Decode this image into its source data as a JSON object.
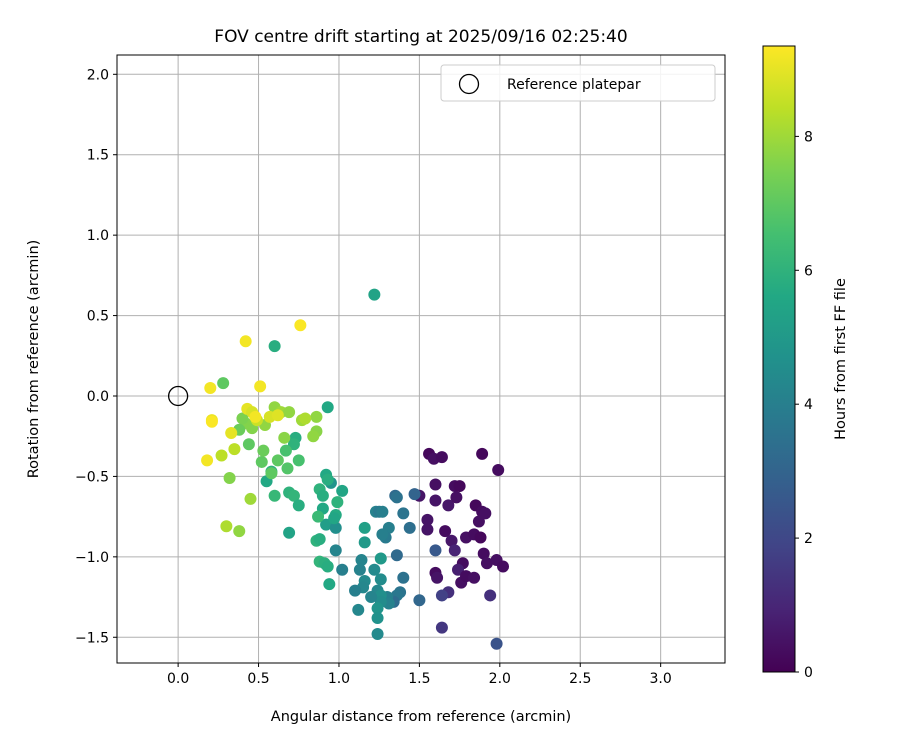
{
  "chart_data": {
    "type": "scatter",
    "title": "FOV centre drift starting at 2025/09/16 02:25:40",
    "xlabel": "Angular distance from reference (arcmin)",
    "ylabel": "Rotation from reference (arcmin)",
    "xlim": [
      -0.38,
      3.4
    ],
    "ylim": [
      -1.66,
      2.12
    ],
    "xticks": [
      0.0,
      0.5,
      1.0,
      1.5,
      2.0,
      2.5,
      3.0
    ],
    "xtick_labels": [
      "0.0",
      "0.5",
      "1.0",
      "1.5",
      "2.0",
      "2.5",
      "3.0"
    ],
    "yticks": [
      -1.5,
      -1.0,
      -0.5,
      0.0,
      0.5,
      1.0,
      1.5,
      2.0
    ],
    "ytick_labels": [
      "−1.5",
      "−1.0",
      "−0.5",
      "0.0",
      "0.5",
      "1.0",
      "1.5",
      "2.0"
    ],
    "grid": true,
    "legend": {
      "location": "upper right",
      "entries": [
        "Reference platepar"
      ]
    },
    "reference_point": {
      "x": 0.0,
      "y": 0.0
    },
    "colorbar": {
      "label": "Hours from first FF file",
      "cmap": "viridis",
      "range": [
        0,
        9.35
      ],
      "ticks": [
        0,
        2,
        4,
        6,
        8
      ],
      "tick_labels": [
        "0",
        "2",
        "4",
        "6",
        "8"
      ]
    },
    "points": [
      [
        1.56,
        -0.36,
        0.2
      ],
      [
        1.59,
        -0.39,
        0.4
      ],
      [
        1.64,
        -0.38,
        0.3
      ],
      [
        1.89,
        -0.36,
        0.2
      ],
      [
        1.99,
        -0.46,
        0.3
      ],
      [
        1.5,
        -0.62,
        0.5
      ],
      [
        1.6,
        -0.55,
        0.4
      ],
      [
        1.72,
        -0.56,
        0.3
      ],
      [
        1.75,
        -0.56,
        0.2
      ],
      [
        1.6,
        -0.65,
        0.5
      ],
      [
        1.68,
        -0.68,
        0.6
      ],
      [
        1.73,
        -0.63,
        0.4
      ],
      [
        1.85,
        -0.68,
        0.2
      ],
      [
        1.89,
        -0.72,
        0.3
      ],
      [
        1.91,
        -0.73,
        0.4
      ],
      [
        1.87,
        -0.78,
        0.4
      ],
      [
        1.55,
        -0.77,
        0.5
      ],
      [
        1.55,
        -0.83,
        0.5
      ],
      [
        1.66,
        -0.84,
        0.3
      ],
      [
        1.7,
        -0.9,
        0.6
      ],
      [
        1.79,
        -0.88,
        0.4
      ],
      [
        1.84,
        -0.86,
        0.3
      ],
      [
        1.88,
        -0.88,
        0.2
      ],
      [
        1.9,
        -0.98,
        0.3
      ],
      [
        1.92,
        -1.04,
        0.4
      ],
      [
        1.98,
        -1.02,
        0.4
      ],
      [
        2.02,
        -1.06,
        0.3
      ],
      [
        1.72,
        -0.96,
        0.9
      ],
      [
        1.77,
        -1.04,
        0.3
      ],
      [
        1.74,
        -1.08,
        0.8
      ],
      [
        1.6,
        -1.1,
        0.3
      ],
      [
        1.61,
        -1.13,
        0.5
      ],
      [
        1.76,
        -1.16,
        0.4
      ],
      [
        1.79,
        -1.12,
        0.3
      ],
      [
        1.84,
        -1.13,
        0.4
      ],
      [
        1.68,
        -1.22,
        1.3
      ],
      [
        1.64,
        -1.24,
        1.8
      ],
      [
        1.94,
        -1.24,
        1.3
      ],
      [
        1.64,
        -1.44,
        1.5
      ],
      [
        1.98,
        -1.54,
        2.4
      ],
      [
        1.6,
        -0.96,
        2.6
      ],
      [
        1.47,
        -0.61,
        3.0
      ],
      [
        1.35,
        -0.62,
        3.2
      ],
      [
        1.36,
        -0.63,
        3.5
      ],
      [
        1.4,
        -0.73,
        3.6
      ],
      [
        1.44,
        -0.82,
        3.4
      ],
      [
        1.31,
        -0.82,
        4.0
      ],
      [
        1.29,
        -0.88,
        3.8
      ],
      [
        1.27,
        -0.86,
        4.0
      ],
      [
        1.23,
        -0.72,
        4.1
      ],
      [
        1.25,
        -0.72,
        3.8
      ],
      [
        1.27,
        -0.72,
        4.0
      ],
      [
        1.36,
        -0.99,
        3.2
      ],
      [
        1.4,
        -1.13,
        3.5
      ],
      [
        1.38,
        -1.22,
        3.6
      ],
      [
        1.36,
        -1.24,
        3.7
      ],
      [
        1.34,
        -1.28,
        3.3
      ],
      [
        1.3,
        -1.25,
        4.0
      ],
      [
        1.31,
        -1.29,
        4.1
      ],
      [
        1.24,
        -1.21,
        4.3
      ],
      [
        1.26,
        -1.24,
        4.6
      ],
      [
        1.26,
        -1.28,
        4.5
      ],
      [
        1.24,
        -1.32,
        4.8
      ],
      [
        1.24,
        -1.38,
        4.7
      ],
      [
        1.24,
        -1.48,
        4.4
      ],
      [
        1.5,
        -1.27,
        3.1
      ],
      [
        1.2,
        -1.25,
        4.2
      ],
      [
        1.12,
        -1.33,
        4.3
      ],
      [
        1.16,
        -1.15,
        4.4
      ],
      [
        1.15,
        -1.19,
        4.3
      ],
      [
        1.1,
        -1.21,
        4.0
      ],
      [
        1.13,
        -1.08,
        4.1
      ],
      [
        1.14,
        -1.02,
        4.2
      ],
      [
        1.02,
        -1.08,
        4.0
      ],
      [
        0.98,
        -0.96,
        4.2
      ],
      [
        1.22,
        -1.08,
        4.4
      ],
      [
        1.26,
        -1.14,
        4.5
      ],
      [
        1.26,
        -1.01,
        5.0
      ],
      [
        1.16,
        -0.91,
        5.0
      ],
      [
        1.16,
        -0.82,
        5.3
      ],
      [
        1.22,
        0.63,
        5.4
      ],
      [
        0.92,
        -0.8,
        5.2
      ],
      [
        0.98,
        -0.82,
        4.6
      ],
      [
        0.95,
        -0.54,
        4.8
      ],
      [
        0.92,
        -0.49,
        5.6
      ],
      [
        0.93,
        -0.52,
        5.8
      ],
      [
        0.88,
        -0.58,
        6.0
      ],
      [
        0.9,
        -0.62,
        5.8
      ],
      [
        0.99,
        -0.66,
        6.0
      ],
      [
        0.9,
        -0.7,
        5.6
      ],
      [
        0.98,
        -0.74,
        5.7
      ],
      [
        0.97,
        -0.76,
        5.5
      ],
      [
        1.02,
        -0.59,
        5.5
      ],
      [
        0.87,
        -0.75,
        6.3
      ],
      [
        0.86,
        -0.9,
        6.0
      ],
      [
        0.88,
        -0.89,
        5.8
      ],
      [
        0.88,
        -1.03,
        6.1
      ],
      [
        0.91,
        -1.04,
        5.9
      ],
      [
        0.93,
        -1.06,
        5.8
      ],
      [
        0.94,
        -1.17,
        5.6
      ],
      [
        0.93,
        -0.07,
        5.6
      ],
      [
        0.6,
        0.31,
        5.8
      ],
      [
        0.55,
        -0.53,
        5.6
      ],
      [
        0.58,
        -0.47,
        6.0
      ],
      [
        0.6,
        -0.62,
        6.2
      ],
      [
        0.69,
        -0.6,
        6.0
      ],
      [
        0.72,
        -0.62,
        6.1
      ],
      [
        0.75,
        -0.68,
        5.8
      ],
      [
        0.69,
        -0.85,
        5.4
      ],
      [
        0.73,
        -0.26,
        5.8
      ],
      [
        0.72,
        -0.3,
        6.0
      ],
      [
        0.67,
        -0.34,
        6.6
      ],
      [
        0.75,
        -0.4,
        6.6
      ],
      [
        0.68,
        -0.45,
        6.8
      ],
      [
        0.62,
        -0.4,
        7.0
      ],
      [
        0.58,
        -0.48,
        7.0
      ],
      [
        0.52,
        -0.41,
        7.0
      ],
      [
        0.53,
        -0.34,
        7.2
      ],
      [
        0.44,
        -0.3,
        7.0
      ],
      [
        0.46,
        -0.2,
        7.6
      ],
      [
        0.45,
        -0.64,
        8.0
      ],
      [
        0.42,
        -0.17,
        7.6
      ],
      [
        0.4,
        -0.14,
        7.5
      ],
      [
        0.38,
        -0.21,
        7.2
      ],
      [
        0.28,
        0.08,
        7.0
      ],
      [
        0.54,
        -0.18,
        7.8
      ],
      [
        0.6,
        -0.07,
        7.8
      ],
      [
        0.64,
        -0.1,
        8.0
      ],
      [
        0.66,
        -0.26,
        7.7
      ],
      [
        0.69,
        -0.1,
        7.8
      ],
      [
        0.77,
        -0.15,
        8.0
      ],
      [
        0.86,
        -0.13,
        7.8
      ],
      [
        0.86,
        -0.22,
        7.7
      ],
      [
        0.84,
        -0.25,
        7.8
      ],
      [
        0.79,
        -0.14,
        8.2
      ],
      [
        0.32,
        -0.51,
        7.6
      ],
      [
        0.3,
        -0.81,
        8.2
      ],
      [
        0.38,
        -0.84,
        7.8
      ],
      [
        0.35,
        -0.33,
        8.4
      ],
      [
        0.27,
        -0.37,
        8.4
      ],
      [
        0.33,
        -0.23,
        9.0
      ],
      [
        0.43,
        -0.08,
        9.0
      ],
      [
        0.46,
        -0.1,
        8.8
      ],
      [
        0.49,
        -0.15,
        8.6
      ],
      [
        0.51,
        0.06,
        9.2
      ],
      [
        0.57,
        -0.13,
        8.8
      ],
      [
        0.62,
        -0.12,
        8.9
      ],
      [
        0.42,
        0.34,
        9.2
      ],
      [
        0.76,
        0.44,
        9.3
      ],
      [
        0.21,
        -0.15,
        9.1
      ],
      [
        0.21,
        -0.16,
        9.3
      ],
      [
        0.2,
        0.05,
        9.2
      ],
      [
        0.18,
        -0.4,
        9.2
      ],
      [
        0.48,
        -0.13,
        9.2
      ]
    ]
  }
}
